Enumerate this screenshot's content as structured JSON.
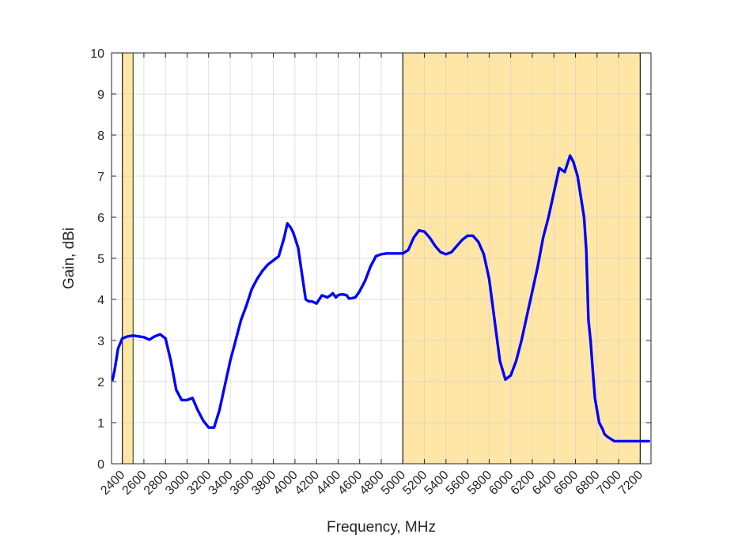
{
  "chart_data": {
    "type": "line",
    "xlabel": "Frequency, MHz",
    "ylabel": "Gain, dBi",
    "xlim": [
      2300,
      7300
    ],
    "ylim": [
      0,
      10
    ],
    "x_ticks": [
      2400,
      2600,
      2800,
      3000,
      3200,
      3400,
      3600,
      3800,
      4000,
      4200,
      4400,
      4600,
      4800,
      5000,
      5200,
      5400,
      5600,
      5800,
      6000,
      6200,
      6400,
      6600,
      6800,
      7000,
      7200
    ],
    "x_tick_labels": [
      "2400",
      "2600",
      "2800",
      "3000",
      "3200",
      "3400",
      "3600",
      "3800",
      "4000",
      "4200",
      "4400",
      "4600",
      "4800",
      "5000",
      "5200",
      "5400",
      "5600",
      "5800",
      "6000",
      "6200",
      "6400",
      "6600",
      "6800",
      "7000",
      "7200"
    ],
    "y_ticks": [
      0,
      1,
      2,
      3,
      4,
      5,
      6,
      7,
      8,
      9,
      10
    ],
    "y_tick_labels": [
      "0",
      "1",
      "2",
      "3",
      "4",
      "5",
      "6",
      "7",
      "8",
      "9",
      "10"
    ],
    "grid": true,
    "highlight_bands": [
      {
        "x": [
          2400,
          2500
        ],
        "color": "#ffe6a6"
      },
      {
        "x": [
          5000,
          7200
        ],
        "color": "#ffe6a6"
      }
    ],
    "series": [
      {
        "color": "#0000ff",
        "x": [
          2310,
          2330,
          2360,
          2400,
          2450,
          2500,
          2550,
          2600,
          2650,
          2700,
          2750,
          2800,
          2850,
          2900,
          2950,
          3000,
          3050,
          3100,
          3150,
          3200,
          3250,
          3300,
          3350,
          3400,
          3450,
          3500,
          3550,
          3600,
          3650,
          3700,
          3750,
          3800,
          3850,
          3900,
          3930,
          3960,
          3980,
          4000,
          4030,
          4060,
          4100,
          4130,
          4160,
          4200,
          4250,
          4300,
          4330,
          4350,
          4380,
          4400,
          4420,
          4450,
          4480,
          4500,
          4530,
          4560,
          4600,
          4650,
          4700,
          4750,
          4800,
          4850,
          4900,
          4950,
          5000,
          5050,
          5100,
          5150,
          5200,
          5250,
          5300,
          5350,
          5400,
          5450,
          5500,
          5550,
          5600,
          5650,
          5700,
          5750,
          5800,
          5850,
          5900,
          5950,
          6000,
          6050,
          6100,
          6150,
          6200,
          6250,
          6300,
          6350,
          6400,
          6450,
          6500,
          6550,
          6580,
          6620,
          6650,
          6680,
          6700,
          6720,
          6740,
          6760,
          6780,
          6800,
          6820,
          6850,
          6870,
          6900,
          6930,
          6960,
          7000,
          7050,
          7100,
          7150,
          7200,
          7250,
          7280
        ],
        "y": [
          2.05,
          2.3,
          2.8,
          3.05,
          3.1,
          3.12,
          3.1,
          3.08,
          3.02,
          3.1,
          3.15,
          3.05,
          2.5,
          1.8,
          1.55,
          1.55,
          1.6,
          1.3,
          1.05,
          0.88,
          0.88,
          1.3,
          1.9,
          2.5,
          3.0,
          3.5,
          3.85,
          4.25,
          4.5,
          4.7,
          4.85,
          4.95,
          5.05,
          5.5,
          5.85,
          5.75,
          5.65,
          5.5,
          5.25,
          4.7,
          4.0,
          3.95,
          3.95,
          3.9,
          4.1,
          4.05,
          4.1,
          4.15,
          4.05,
          4.1,
          4.12,
          4.12,
          4.1,
          4.02,
          4.03,
          4.05,
          4.2,
          4.45,
          4.8,
          5.05,
          5.1,
          5.12,
          5.12,
          5.12,
          5.12,
          5.2,
          5.5,
          5.68,
          5.65,
          5.5,
          5.3,
          5.15,
          5.1,
          5.15,
          5.3,
          5.45,
          5.55,
          5.55,
          5.4,
          5.1,
          4.5,
          3.5,
          2.5,
          2.05,
          2.15,
          2.5,
          3.0,
          3.6,
          4.2,
          4.8,
          5.5,
          6.0,
          6.6,
          7.2,
          7.1,
          7.5,
          7.35,
          7.0,
          6.5,
          6.0,
          5.2,
          3.5,
          3.0,
          2.3,
          1.6,
          1.3,
          1.0,
          0.85,
          0.72,
          0.65,
          0.6,
          0.55,
          0.55,
          0.55,
          0.55,
          0.55,
          0.55,
          0.55,
          0.55
        ]
      }
    ]
  }
}
